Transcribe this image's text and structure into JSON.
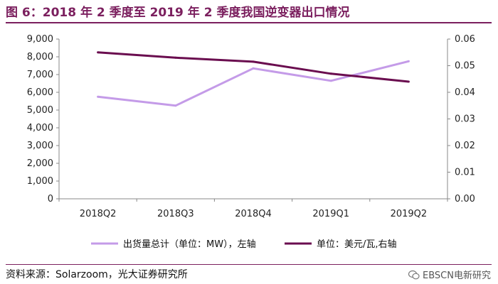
{
  "title": "图 6：2018 年 2 季度至 2019 年 2 季度我国逆变器出口情况",
  "source": "资料来源：Solarzoom，光大证券研究所",
  "watermark": "EBSCN电新研究",
  "colors": {
    "accent": "#7b1f5e",
    "series1": "#c49be8",
    "series2": "#6a0d4f"
  },
  "chart_data": {
    "type": "line",
    "categories": [
      "2018Q2",
      "2018Q3",
      "2018Q4",
      "2019Q1",
      "2019Q2"
    ],
    "series": [
      {
        "name": "出货量总计（单位：MW），左轴",
        "axis": "left",
        "color": "#c49be8",
        "values": [
          5750,
          5250,
          7350,
          6650,
          7750
        ]
      },
      {
        "name": "单位：美元/瓦,右轴",
        "axis": "right",
        "color": "#6a0d4f",
        "values": [
          0.055,
          0.053,
          0.0515,
          0.047,
          0.044
        ]
      }
    ],
    "y_left": {
      "min": 0,
      "max": 9000,
      "ticks": [
        "0",
        "1,000",
        "2,000",
        "3,000",
        "4,000",
        "5,000",
        "6,000",
        "7,000",
        "8,000",
        "9,000"
      ]
    },
    "y_right": {
      "min": 0,
      "max": 0.06,
      "ticks": [
        "0.00",
        "0.01",
        "0.02",
        "0.03",
        "0.04",
        "0.05",
        "0.06"
      ]
    },
    "grid": false,
    "legend_position": "bottom"
  }
}
